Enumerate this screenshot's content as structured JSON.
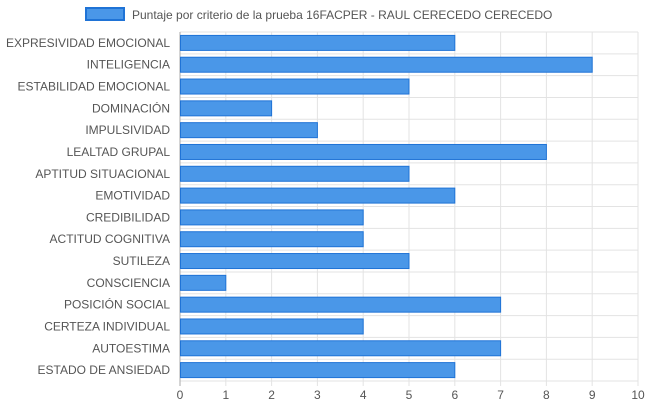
{
  "chart_data": {
    "type": "bar",
    "orientation": "horizontal",
    "legend": {
      "position": "top",
      "entries": [
        {
          "label": "Puntaje por criterio de la prueba 16FACPER - RAUL CERECEDO CERECEDO",
          "color": "#4a97e8",
          "border": "#1f73d6"
        }
      ]
    },
    "categories": [
      "EXPRESIVIDAD EMOCIONAL",
      "INTELIGENCIA",
      "ESTABILIDAD EMOCIONAL",
      "DOMINACIÓN",
      "IMPULSIVIDAD",
      "LEALTAD GRUPAL",
      "APTITUD SITUACIONAL",
      "EMOTIVIDAD",
      "CREDIBILIDAD",
      "ACTITUD COGNITIVA",
      "SUTILEZA",
      "CONSCIENCIA",
      "POSICIÓN SOCIAL",
      "CERTEZA INDIVIDUAL",
      "AUTOESTIMA",
      "ESTADO DE ANSIEDAD"
    ],
    "series": [
      {
        "name": "Puntaje por criterio de la prueba 16FACPER - RAUL CERECEDO CERECEDO",
        "values": [
          6,
          9,
          5,
          2,
          3,
          8,
          5,
          6,
          4,
          4,
          5,
          1,
          7,
          4,
          7,
          6
        ]
      }
    ],
    "xlim": [
      0,
      10
    ],
    "xticks": [
      "0",
      "1",
      "2",
      "3",
      "4",
      "5",
      "6",
      "7",
      "8",
      "9",
      "10"
    ],
    "grid": true,
    "colors": {
      "bar_fill": "#4a97e8",
      "bar_border": "#1f73d6",
      "grid": "#e3e3e3",
      "axis": "#aaaaaa",
      "text": "#555555"
    }
  }
}
